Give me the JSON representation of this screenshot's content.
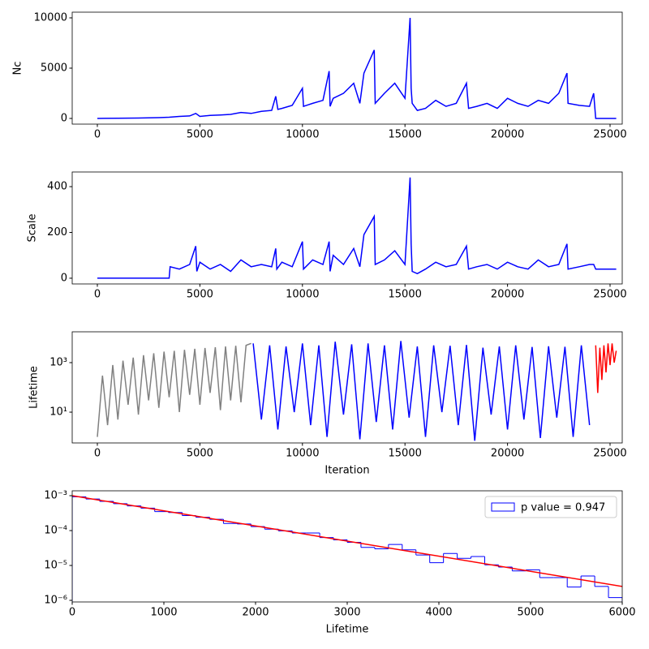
{
  "chart_data": [
    {
      "type": "line",
      "ylabel": "Nc",
      "xlim": [
        -1226,
        25593
      ],
      "ylim": [
        -565,
        10565
      ],
      "xticks": [
        0,
        5000,
        10000,
        15000,
        20000,
        25000
      ],
      "yticks": [
        0,
        5000,
        10000
      ],
      "series": [
        {
          "color": "#0000ff",
          "x": [
            0,
            1000,
            2000,
            3000,
            3500,
            4000,
            4500,
            4800,
            5000,
            5500,
            6000,
            6500,
            7000,
            7500,
            8000,
            8500,
            8700,
            8800,
            9000,
            9500,
            10000,
            10050,
            10500,
            11000,
            11300,
            11350,
            11500,
            12000,
            12500,
            12800,
            13000,
            13500,
            13550,
            14000,
            14500,
            15000,
            15250,
            15300,
            15350,
            15600,
            16000,
            16500,
            17000,
            17500,
            18000,
            18100,
            18500,
            19000,
            19500,
            20000,
            20500,
            21000,
            21500,
            22000,
            22500,
            22900,
            22950,
            23500,
            24000,
            24200,
            24300,
            25300
          ],
          "values": [
            0,
            20,
            40,
            80,
            120,
            200,
            250,
            500,
            200,
            300,
            350,
            400,
            600,
            500,
            700,
            800,
            2200,
            900,
            1000,
            1300,
            3000,
            1200,
            1500,
            1800,
            4700,
            1200,
            2000,
            2500,
            3500,
            1500,
            4500,
            6800,
            1500,
            2500,
            3500,
            2000,
            10000,
            3000,
            1500,
            800,
            1000,
            1800,
            1200,
            1500,
            3500,
            1000,
            1200,
            1500,
            1000,
            2000,
            1500,
            1200,
            1800,
            1500,
            2500,
            4500,
            1500,
            1300,
            1200,
            2500,
            0,
            0
          ]
        }
      ]
    },
    {
      "type": "line",
      "ylabel": "Scale",
      "xlim": [
        -1226,
        25593
      ],
      "ylim": [
        -25,
        464
      ],
      "xticks": [
        0,
        5000,
        10000,
        15000,
        20000,
        25000
      ],
      "yticks": [
        0,
        200,
        400
      ],
      "series": [
        {
          "color": "#0000ff",
          "x": [
            0,
            3500,
            3550,
            4000,
            4500,
            4800,
            4850,
            5000,
            5500,
            6000,
            6500,
            7000,
            7500,
            8000,
            8500,
            8700,
            8750,
            9000,
            9500,
            10000,
            10050,
            10500,
            11000,
            11300,
            11350,
            11500,
            12000,
            12500,
            12800,
            13000,
            13500,
            13550,
            14000,
            14500,
            15000,
            15250,
            15300,
            15350,
            15600,
            16000,
            16500,
            17000,
            17500,
            18000,
            18100,
            18500,
            19000,
            19500,
            20000,
            20500,
            21000,
            21500,
            22000,
            22500,
            22900,
            22950,
            23500,
            24000,
            24200,
            24300,
            25300
          ],
          "values": [
            0,
            0,
            50,
            40,
            60,
            140,
            30,
            70,
            40,
            60,
            30,
            80,
            50,
            60,
            50,
            130,
            40,
            70,
            50,
            160,
            40,
            80,
            60,
            160,
            30,
            100,
            60,
            130,
            50,
            190,
            270,
            60,
            80,
            120,
            60,
            440,
            150,
            30,
            20,
            40,
            70,
            50,
            60,
            140,
            40,
            50,
            60,
            40,
            70,
            50,
            40,
            80,
            50,
            60,
            150,
            40,
            50,
            60,
            60,
            40,
            40
          ]
        }
      ]
    },
    {
      "type": "line",
      "ylabel": "Lifetime",
      "xlabel": "Iteration",
      "log_y": true,
      "xlim": [
        -1226,
        25593
      ],
      "ylim": [
        0.57,
        17600
      ],
      "xticks": [
        0,
        5000,
        10000,
        15000,
        20000,
        25000
      ],
      "yticks": [
        {
          "value": 10,
          "label": "10¹"
        },
        {
          "value": 1000,
          "label": "10³"
        }
      ],
      "series": [
        {
          "color": "#808080",
          "x": [
            0,
            250,
            500,
            750,
            1000,
            1250,
            1500,
            1750,
            2000,
            2250,
            2500,
            2750,
            3000,
            3250,
            3500,
            3750,
            4000,
            4250,
            4500,
            4750,
            5000,
            5250,
            5500,
            5750,
            6000,
            6250,
            6500,
            6750,
            7000,
            7250,
            7500
          ],
          "values": [
            1,
            300,
            3,
            800,
            5,
            1200,
            20,
            1600,
            8,
            2000,
            30,
            2400,
            15,
            2800,
            40,
            3000,
            10,
            3300,
            50,
            3600,
            20,
            3900,
            60,
            4200,
            12,
            4500,
            30,
            4800,
            25,
            5000,
            6000
          ]
        },
        {
          "color": "#0000ff",
          "x": [
            7600,
            8000,
            8400,
            8800,
            9200,
            9600,
            10000,
            10400,
            10800,
            11200,
            11600,
            12000,
            12400,
            12800,
            13200,
            13600,
            14000,
            14400,
            14800,
            15200,
            15600,
            16000,
            16400,
            16800,
            17200,
            17600,
            18000,
            18400,
            18800,
            19200,
            19600,
            20000,
            20400,
            20800,
            21200,
            21600,
            22000,
            22400,
            22800,
            23200,
            23600,
            24000
          ],
          "values": [
            6000,
            5,
            5000,
            2,
            4500,
            10,
            6000,
            3,
            5000,
            1,
            7000,
            8,
            5500,
            0.8,
            6000,
            4,
            5000,
            2,
            7500,
            6,
            4500,
            1,
            5000,
            10,
            4800,
            3,
            5200,
            0.7,
            4000,
            8,
            4500,
            2,
            5000,
            5,
            4300,
            0.9,
            4600,
            6,
            4400,
            1,
            5000,
            3
          ]
        },
        {
          "color": "#ff0000",
          "x": [
            24300,
            24400,
            24500,
            24600,
            24700,
            24800,
            24900,
            25000,
            25100,
            25200,
            25300
          ],
          "values": [
            5000,
            60,
            4000,
            200,
            5000,
            400,
            6000,
            800,
            6000,
            1000,
            3000
          ]
        }
      ]
    },
    {
      "type": "histogram",
      "xlabel": "Lifetime",
      "log_y": true,
      "name": "p value = 0.947",
      "color": "#0000ff",
      "legend": "upper right",
      "xlim": [
        0,
        6000
      ],
      "ylim": [
        9e-07,
        0.00138
      ],
      "xticks": [
        0,
        1000,
        2000,
        3000,
        4000,
        5000,
        6000
      ],
      "yticks": [
        {
          "value": 1e-06,
          "label": "10⁻⁶"
        },
        {
          "value": 1e-05,
          "label": "10⁻⁵"
        },
        {
          "value": 0.0001,
          "label": "10⁻⁴"
        },
        {
          "value": 0.001,
          "label": "10⁻³"
        }
      ],
      "bins": [
        0,
        150,
        300,
        450,
        600,
        750,
        900,
        1050,
        1200,
        1350,
        1500,
        1650,
        1800,
        1950,
        2100,
        2250,
        2400,
        2550,
        2700,
        2850,
        3000,
        3150,
        3300,
        3450,
        3600,
        3750,
        3900,
        4050,
        4200,
        4350,
        4500,
        4650,
        4800,
        4950,
        5100,
        5250,
        5400,
        5550,
        5700,
        5850,
        6000
      ],
      "values": [
        0.00093,
        0.0008,
        0.00069,
        0.00059,
        0.00051,
        0.00044,
        0.00035,
        0.00033,
        0.00027,
        0.00024,
        0.00021,
        0.00016,
        0.000155,
        0.00013,
        0.00011,
        9.8e-05,
        8.5e-05,
        8.5e-05,
        6.3e-05,
        5.4e-05,
        4.6e-05,
        3.3e-05,
        3e-05,
        4e-05,
        2.8e-05,
        2e-05,
        1.2e-05,
        2.2e-05,
        1.6e-05,
        1.8e-05,
        1.04e-05,
        9e-06,
        7e-06,
        7.5e-06,
        4.5e-06,
        4.5e-06,
        2.4e-06,
        5e-06,
        2.5e-06,
        1.2e-06
      ],
      "fit": {
        "color": "#ff0000",
        "x": [
          0,
          6000
        ],
        "values": [
          0.001,
          2.5e-06
        ]
      }
    }
  ]
}
